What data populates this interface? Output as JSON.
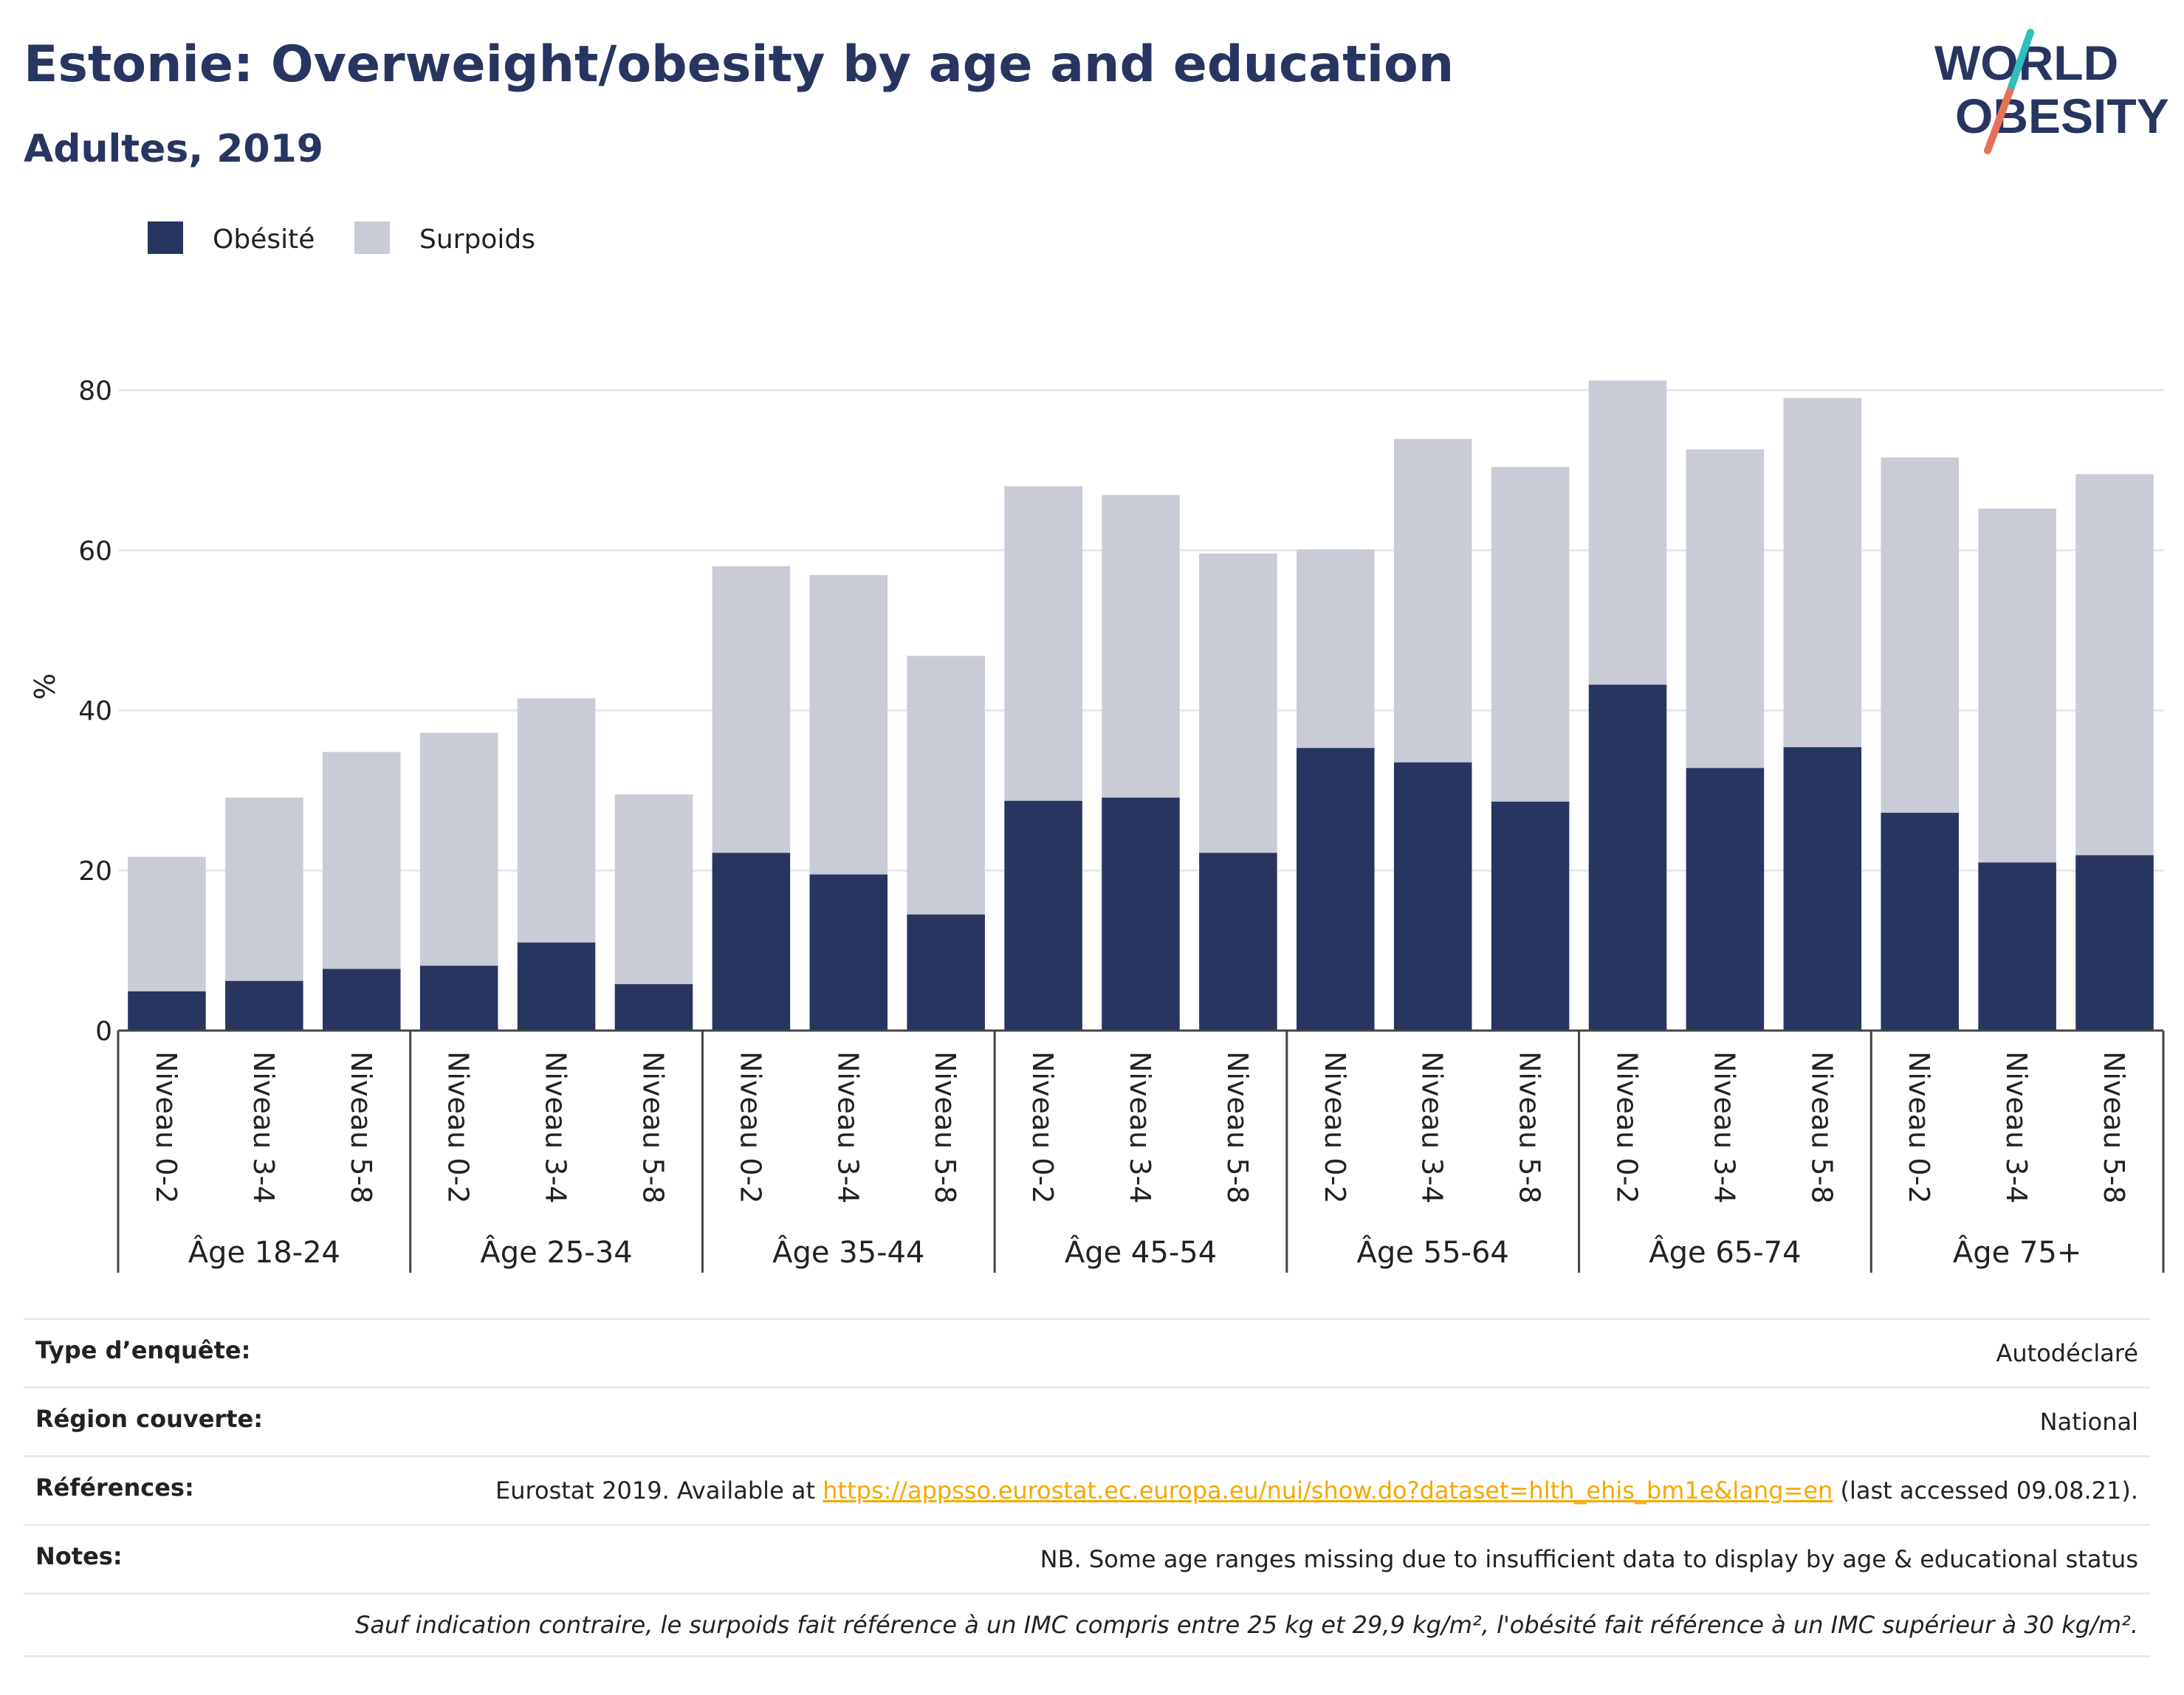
{
  "header": {
    "title": "Estonie: Overweight/obesity by age and education",
    "subtitle": "Adultes, 2019"
  },
  "logo": {
    "line1": "WORLD",
    "line2": "OBESITY"
  },
  "colors": {
    "obesity": "#283561",
    "overweight": "#c9cbd7",
    "grid": "#e6e8f0",
    "axis": "#444444",
    "logo_teal": "#2ebfbe",
    "logo_coral": "#e8715a",
    "link": "#f5a800"
  },
  "chart_data": {
    "type": "bar",
    "stacked": true,
    "ylabel": "%",
    "ylim": [
      0,
      90
    ],
    "yticks": [
      0,
      20,
      40,
      60,
      80
    ],
    "grid": true,
    "legend_position": "top-left",
    "groups": [
      "Âge 18-24",
      "Âge 25-34",
      "Âge 35-44",
      "Âge 45-54",
      "Âge 55-64",
      "Âge 65-74",
      "Âge 75+"
    ],
    "levels": [
      "Niveau 0-2",
      "Niveau 3-4",
      "Niveau 5-8"
    ],
    "series": [
      {
        "name": "Obésité",
        "color": "#283561",
        "values": [
          4.9,
          6.2,
          7.7,
          8.1,
          11.0,
          5.8,
          22.2,
          19.5,
          14.5,
          28.7,
          29.1,
          22.2,
          35.3,
          33.5,
          28.6,
          43.2,
          32.8,
          35.4,
          27.2,
          21.0,
          21.9
        ]
      },
      {
        "name": "Surpoids",
        "color": "#c9cbd7",
        "values": [
          16.8,
          22.9,
          27.1,
          29.1,
          30.5,
          23.7,
          35.8,
          37.4,
          32.3,
          39.3,
          37.8,
          37.4,
          24.8,
          40.4,
          41.8,
          38.0,
          39.8,
          43.6,
          44.4,
          44.2,
          47.6
        ]
      }
    ]
  },
  "info": {
    "rows": [
      {
        "label": "Type d’enquête:",
        "value": "Autodéclaré"
      },
      {
        "label": "Région couverte:",
        "value": "National"
      }
    ],
    "references": {
      "label": "Références:",
      "prefix": "Eurostat 2019. Available at",
      "link": "https://appsso.eurostat.ec.europa.eu/nui/show.do?dataset=hlth_ehis_bm1e&lang=en",
      "suffix": "(last accessed 09.08.21)."
    },
    "notes": {
      "label": "Notes:",
      "value": "NB. Some age ranges missing due to insufficient data to display by age & educational status"
    },
    "definition": "Sauf indication contraire, le surpoids fait référence à un IMC compris entre 25 kg et 29,9 kg/m², l'obésité fait référence à un IMC supérieur à 30 kg/m²."
  }
}
